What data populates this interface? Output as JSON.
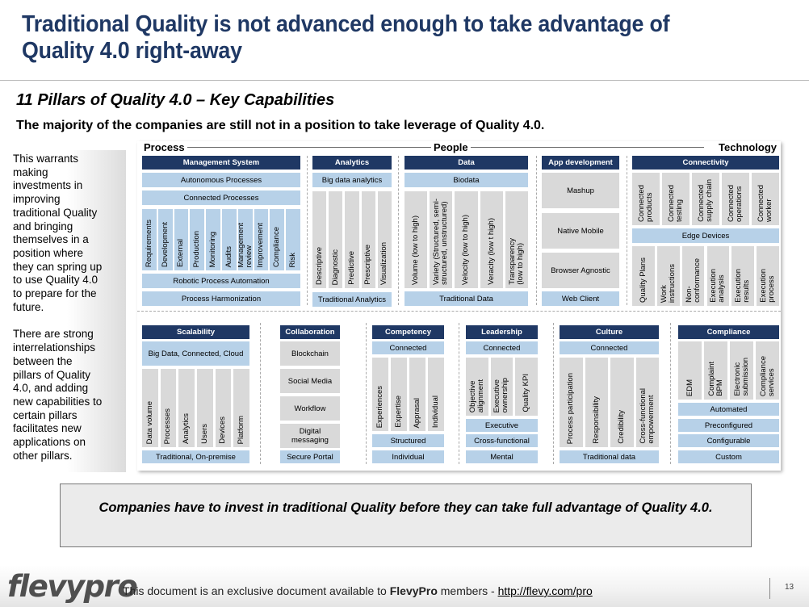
{
  "title": "Traditional Quality is not advanced enough to take advantage of Quality 4.0 right-away",
  "subtitle": "11 Pillars of Quality 4.0 – Key Capabilities",
  "lead": "The majority of the companies are still not in a position to take leverage of Quality 4.0.",
  "sidebar": {
    "para1": "This warrants making investments in improving traditional Quality and bringing themselves in a position where they can spring up to use Quality 4.0 to prepare for the future.",
    "para2": "There are strong interrelationships between the pillars of Quality 4.0, and adding new capabilities to certain pillars facilitates new applications on other pillars."
  },
  "axis": {
    "left": "Process",
    "middle": "People",
    "right": "Technology"
  },
  "management": {
    "header": "Management System",
    "autonomous": "Autonomous Processes",
    "connected": "Connected Processes",
    "vertical": [
      "Requirements",
      "Development",
      "External",
      "Production",
      "Monitoring",
      "Audits",
      "Management\nreview",
      "Improvement",
      "Compliance",
      "Risk"
    ],
    "robotic": "Robotic Process Automation",
    "harmonization": "Process Harmonization"
  },
  "analytics": {
    "header": "Analytics",
    "big": "Big data analytics",
    "vertical": [
      "Descriptive",
      "Diagnostic",
      "Predictive",
      "Prescriptive",
      "Visualization"
    ],
    "traditional": "Traditional Analytics"
  },
  "data": {
    "header": "Data",
    "biodata": "Biodata",
    "vertical": [
      "Volume (low to high)",
      "Variety (Structured, semi-\nstructured, unstructured)",
      "Velocity (low to high)",
      "Veracity (low t high)",
      "Transparency\n(low to high)"
    ],
    "traditional": "Traditional Data"
  },
  "app": {
    "header": "App development",
    "items": [
      "Mashup",
      "Native Mobile",
      "Browser Agnostic"
    ],
    "web": "Web Client"
  },
  "connectivity": {
    "header": "Connectivity",
    "top": [
      "Connected\nproducts",
      "Connected\ntesting",
      "Connected\nsupply chain",
      "Connected\noperations",
      "Connected\nworker"
    ],
    "edge": "Edge Devices",
    "bottom": [
      "Quality Plans",
      "Work\ninstructions",
      "Non-\nconformance",
      "Execution\nanalysis",
      "Execution\nresults",
      "Execution\nprocess"
    ]
  },
  "scalability": {
    "header": "Scalability",
    "top": "Big Data, Connected, Cloud",
    "vertical": [
      "Data volume",
      "Processes",
      "Analytics",
      "Users",
      "Devices",
      "Platform"
    ],
    "bottom": "Traditional, On-premise"
  },
  "collaboration": {
    "header": "Collaboration",
    "items": [
      "Blockchain",
      "Social Media",
      "Workflow",
      "Digital messaging"
    ],
    "portal": "Secure Portal"
  },
  "competency": {
    "header": "Competency",
    "connected": "Connected",
    "vertical": [
      "Experiences",
      "Expertise",
      "Apprasal",
      "Individual"
    ],
    "structured": "Structured",
    "individual": "Individual"
  },
  "leadership": {
    "header": "Leadership",
    "connected": "Connected",
    "vertical": [
      "Objective\nalignment",
      "Executive\nownership",
      "Quality KPI"
    ],
    "executive": "Executive",
    "cross": "Cross-functional",
    "mental": "Mental"
  },
  "culture": {
    "header": "Culture",
    "connected": "Connected",
    "vertical": [
      "Process participation",
      "Responsibility",
      "Credibility",
      "Cross-functional\nempowerment"
    ],
    "traditional": "Traditional data"
  },
  "compliance": {
    "header": "Compliance",
    "vertical": [
      "EDM",
      "Complaint\nBPM",
      "Electronic\nsubmission",
      "Compliance\nservices"
    ],
    "items": [
      "Automated",
      "Preconfigured",
      "Configurable",
      "Custom"
    ]
  },
  "callout": "Companies have to invest in traditional Quality before they can take full advantage of Quality 4.0.",
  "footer": {
    "logo": "flevypro",
    "text_pre": "This document is an exclusive document available to ",
    "brand": "FlevyPro",
    "text_mid": " members - ",
    "link": "http://flevy.com/pro",
    "page": "13"
  }
}
